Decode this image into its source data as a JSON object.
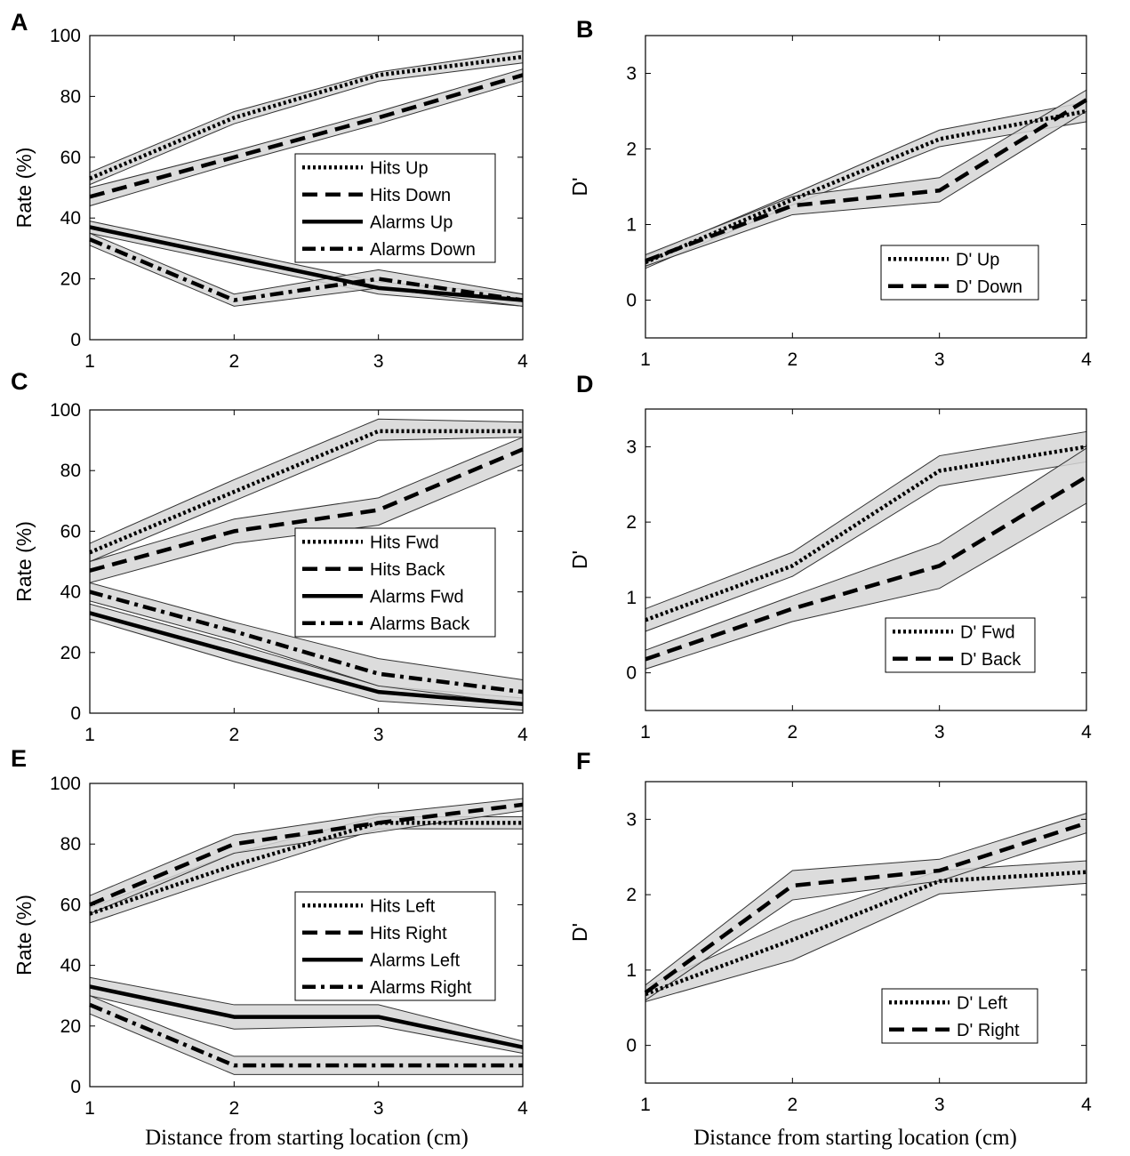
{
  "x_axis_label": "Distance from starting location (cm)",
  "chart_data": [
    {
      "type": "line",
      "panel": "A",
      "ylabel": "Rate (%)",
      "x": [
        1,
        2,
        3,
        4
      ],
      "xlim": [
        1,
        4
      ],
      "ylim": [
        0,
        100
      ],
      "yticks": [
        0,
        20,
        40,
        60,
        80,
        100
      ],
      "legend_position": "center-right",
      "series": [
        {
          "name": "Hits Up",
          "style": "dotted",
          "values": [
            53,
            73,
            87,
            93
          ],
          "lower": [
            51,
            71,
            85,
            91
          ],
          "upper": [
            55,
            75,
            88,
            95
          ]
        },
        {
          "name": "Hits Down",
          "style": "dashed",
          "values": [
            47,
            60,
            73,
            87
          ],
          "lower": [
            44,
            58,
            71,
            85
          ],
          "upper": [
            50,
            62,
            75,
            89
          ]
        },
        {
          "name": "Alarms Up",
          "style": "solid",
          "values": [
            37,
            27,
            17,
            13
          ],
          "lower": [
            35,
            25,
            15,
            11
          ],
          "upper": [
            39,
            29,
            19,
            15
          ]
        },
        {
          "name": "Alarms Down",
          "style": "dashdot",
          "values": [
            33,
            13,
            20,
            13
          ],
          "lower": [
            31,
            11,
            17,
            11
          ],
          "upper": [
            35,
            15,
            23,
            15
          ]
        }
      ]
    },
    {
      "type": "line",
      "panel": "B",
      "ylabel": "D'",
      "x": [
        1,
        2,
        3,
        4
      ],
      "xlim": [
        1,
        4
      ],
      "ylim": [
        -0.5,
        3.5
      ],
      "yticks": [
        0,
        1,
        2,
        3
      ],
      "legend_position": "bottom-right",
      "series": [
        {
          "name": "D' Up",
          "style": "dotted",
          "values": [
            0.5,
            1.33,
            2.13,
            2.5
          ],
          "lower": [
            0.42,
            1.26,
            2.03,
            2.36
          ],
          "upper": [
            0.58,
            1.4,
            2.25,
            2.62
          ]
        },
        {
          "name": "D' Down",
          "style": "dashed",
          "values": [
            0.52,
            1.25,
            1.45,
            2.65
          ],
          "lower": [
            0.45,
            1.13,
            1.3,
            2.5
          ],
          "upper": [
            0.6,
            1.37,
            1.62,
            2.78
          ]
        }
      ]
    },
    {
      "type": "line",
      "panel": "C",
      "ylabel": "Rate (%)",
      "x": [
        1,
        2,
        3,
        4
      ],
      "xlim": [
        1,
        4
      ],
      "ylim": [
        0,
        100
      ],
      "yticks": [
        0,
        20,
        40,
        60,
        80,
        100
      ],
      "legend_position": "center-right",
      "series": [
        {
          "name": "Hits Fwd",
          "style": "dotted",
          "values": [
            53,
            73,
            93,
            93
          ],
          "lower": [
            50,
            70,
            90,
            91
          ],
          "upper": [
            56,
            77,
            97,
            96
          ]
        },
        {
          "name": "Hits Back",
          "style": "dashed",
          "values": [
            47,
            60,
            67,
            87
          ],
          "lower": [
            43,
            56,
            62,
            82
          ],
          "upper": [
            50,
            64,
            71,
            91
          ]
        },
        {
          "name": "Alarms Fwd",
          "style": "solid",
          "values": [
            33,
            20,
            7,
            3
          ],
          "lower": [
            31,
            17,
            4,
            1
          ],
          "upper": [
            36,
            23,
            9,
            5
          ]
        },
        {
          "name": "Alarms Back",
          "style": "dashdot",
          "values": [
            40,
            27,
            13,
            7
          ],
          "lower": [
            37,
            24,
            9,
            3
          ],
          "upper": [
            43,
            30,
            18,
            11
          ]
        }
      ]
    },
    {
      "type": "line",
      "panel": "D",
      "ylabel": "D'",
      "x": [
        1,
        2,
        3,
        4
      ],
      "xlim": [
        1,
        4
      ],
      "ylim": [
        -0.5,
        3.5
      ],
      "yticks": [
        0,
        1,
        2,
        3
      ],
      "legend_position": "bottom-right",
      "series": [
        {
          "name": "D' Fwd",
          "style": "dotted",
          "values": [
            0.7,
            1.42,
            2.68,
            3.0
          ],
          "lower": [
            0.55,
            1.28,
            2.48,
            2.8
          ],
          "upper": [
            0.85,
            1.6,
            2.88,
            3.2
          ]
        },
        {
          "name": "D' Back",
          "style": "dashed",
          "values": [
            0.18,
            0.85,
            1.42,
            2.6
          ],
          "lower": [
            0.05,
            0.68,
            1.12,
            2.25
          ],
          "upper": [
            0.3,
            1.02,
            1.72,
            2.98
          ]
        }
      ]
    },
    {
      "type": "line",
      "panel": "E",
      "ylabel": "Rate (%)",
      "x": [
        1,
        2,
        3,
        4
      ],
      "xlim": [
        1,
        4
      ],
      "ylim": [
        0,
        100
      ],
      "yticks": [
        0,
        20,
        40,
        60,
        80,
        100
      ],
      "legend_position": "center-right",
      "series": [
        {
          "name": "Hits Left",
          "style": "dotted",
          "values": [
            57,
            73,
            87,
            87
          ],
          "lower": [
            54,
            70,
            85,
            85
          ],
          "upper": [
            59,
            77,
            89,
            89
          ]
        },
        {
          "name": "Hits Right",
          "style": "dashed",
          "values": [
            60,
            80,
            87,
            93
          ],
          "lower": [
            57,
            77,
            84,
            91
          ],
          "upper": [
            63,
            83,
            90,
            95
          ]
        },
        {
          "name": "Alarms Left",
          "style": "solid",
          "values": [
            33,
            23,
            23,
            13
          ],
          "lower": [
            30,
            19,
            20,
            11
          ],
          "upper": [
            36,
            27,
            27,
            15
          ]
        },
        {
          "name": "Alarms Right",
          "style": "dashdot",
          "values": [
            27,
            7,
            7,
            7
          ],
          "lower": [
            24,
            4,
            4,
            4
          ],
          "upper": [
            30,
            10,
            10,
            10
          ]
        }
      ]
    },
    {
      "type": "line",
      "panel": "F",
      "ylabel": "D'",
      "x": [
        1,
        2,
        3,
        4
      ],
      "xlim": [
        1,
        4
      ],
      "ylim": [
        -0.5,
        3.5
      ],
      "yticks": [
        0,
        1,
        2,
        3
      ],
      "legend_position": "bottom-right",
      "series": [
        {
          "name": "D' Left",
          "style": "dotted",
          "values": [
            0.68,
            1.4,
            2.18,
            2.3
          ],
          "lower": [
            0.58,
            1.13,
            2.01,
            2.15
          ],
          "upper": [
            0.78,
            1.65,
            2.32,
            2.45
          ]
        },
        {
          "name": "D' Right",
          "style": "dashed",
          "values": [
            0.7,
            2.12,
            2.32,
            2.95
          ],
          "lower": [
            0.6,
            1.93,
            2.18,
            2.82
          ],
          "upper": [
            0.8,
            2.32,
            2.47,
            3.08
          ]
        }
      ]
    }
  ]
}
